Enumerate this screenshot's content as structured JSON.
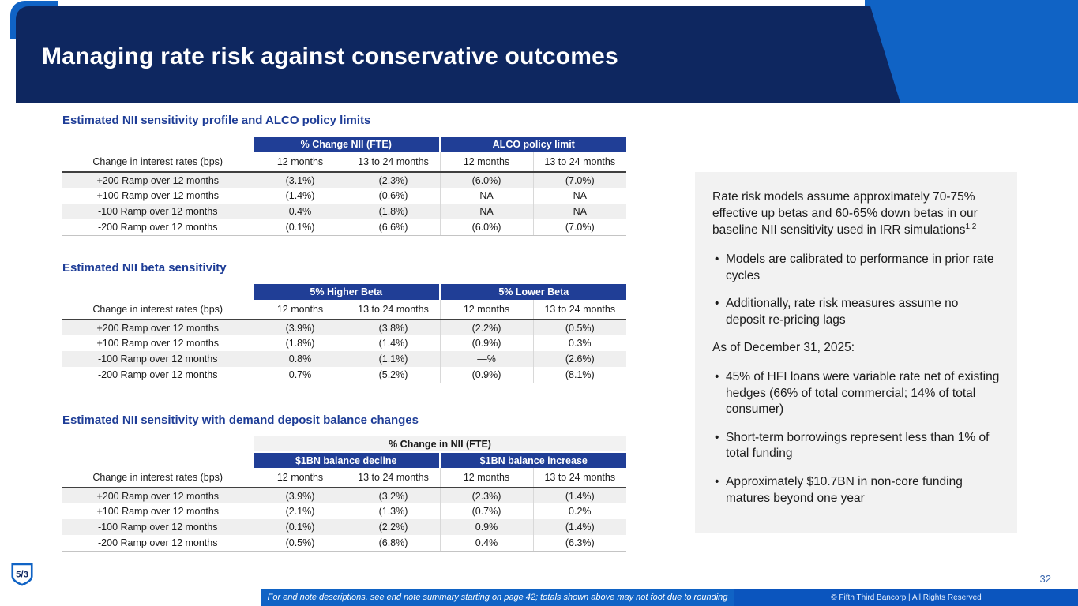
{
  "slide": {
    "title": "Managing rate risk against conservative outcomes",
    "page_number": "32",
    "footnote": "For end note descriptions, see end note summary starting on page 42; totals shown above may not foot due to rounding",
    "copyright": "© Fifth Third Bancorp | All Rights Reserved",
    "logo_text": "5/3"
  },
  "colors": {
    "brand_blue": "#1063C5",
    "header_navy": "#0E2760",
    "table_header_navy": "#203E96",
    "heading_blue": "#1E3D97",
    "row_shade": "#EFEFEF",
    "sidebar_bg": "#F2F2F2"
  },
  "sections": [
    {
      "heading": "Estimated NII sensitivity profile and ALCO policy limits",
      "table": {
        "group_headers": [
          "% Change NII (FTE)",
          "ALCO policy limit"
        ],
        "row_label_header": "Change in interest rates (bps)",
        "col_headers": [
          "12 months",
          "13 to 24 months",
          "12 months",
          "13 to 24 months"
        ],
        "rows": [
          {
            "label": "+200 Ramp over 12 months",
            "values": [
              "(3.1%)",
              "(2.3%)",
              "(6.0%)",
              "(7.0%)"
            ]
          },
          {
            "label": "+100 Ramp over 12 months",
            "values": [
              "(1.4%)",
              "(0.6%)",
              "NA",
              "NA"
            ]
          },
          {
            "label": "-100 Ramp over 12 months",
            "values": [
              "0.4%",
              "(1.8%)",
              "NA",
              "NA"
            ]
          },
          {
            "label": "-200 Ramp over 12 months",
            "values": [
              "(0.1%)",
              "(6.6%)",
              "(6.0%)",
              "(7.0%)"
            ]
          }
        ]
      }
    },
    {
      "heading": "Estimated NII beta sensitivity",
      "table": {
        "group_headers": [
          "5% Higher Beta",
          "5% Lower Beta"
        ],
        "row_label_header": "Change in interest rates (bps)",
        "col_headers": [
          "12 months",
          "13 to 24 months",
          "12 months",
          "13 to 24 months"
        ],
        "rows": [
          {
            "label": "+200 Ramp over 12 months",
            "values": [
              "(3.9%)",
              "(3.8%)",
              "(2.2%)",
              "(0.5%)"
            ]
          },
          {
            "label": "+100 Ramp over 12 months",
            "values": [
              "(1.8%)",
              "(1.4%)",
              "(0.9%)",
              "0.3%"
            ]
          },
          {
            "label": "-100 Ramp over 12 months",
            "values": [
              "0.8%",
              "(1.1%)",
              "—%",
              "(2.6%)"
            ]
          },
          {
            "label": "-200 Ramp over 12 months",
            "values": [
              "0.7%",
              "(5.2%)",
              "(0.9%)",
              "(8.1%)"
            ]
          }
        ]
      }
    },
    {
      "heading": "Estimated NII sensitivity with demand deposit balance changes",
      "table": {
        "span_header": "% Change in NII (FTE)",
        "group_headers": [
          "$1BN balance decline",
          "$1BN balance increase"
        ],
        "row_label_header": "Change in interest rates (bps)",
        "col_headers": [
          "12 months",
          "13 to 24 months",
          "12 months",
          "13 to 24 months"
        ],
        "rows": [
          {
            "label": "+200 Ramp over 12 months",
            "values": [
              "(3.9%)",
              "(3.2%)",
              "(2.3%)",
              "(1.4%)"
            ]
          },
          {
            "label": "+100 Ramp over 12 months",
            "values": [
              "(2.1%)",
              "(1.3%)",
              "(0.7%)",
              "0.2%"
            ]
          },
          {
            "label": "-100 Ramp over 12 months",
            "values": [
              "(0.1%)",
              "(2.2%)",
              "0.9%",
              "(1.4%)"
            ]
          },
          {
            "label": "-200 Ramp over 12 months",
            "values": [
              "(0.5%)",
              "(6.8%)",
              "0.4%",
              "(6.3%)"
            ]
          }
        ]
      }
    }
  ],
  "sidebar": {
    "p1": "Rate risk models assume approximately 70-75% effective up betas and 60-65% down betas in our baseline NII sensitivity used in IRR simulations",
    "p1_sup": "1,2",
    "bullets_a": [
      "Models are calibrated to performance in prior rate cycles",
      "Additionally, rate risk measures assume no deposit re-pricing lags"
    ],
    "p2": "As of December 31, 2025:",
    "bullets_b": [
      "45% of HFI loans were variable rate net of existing hedges (66% of total commercial; 14% of total consumer)",
      "Short-term borrowings represent less than 1% of total funding",
      "Approximately $10.7BN in non-core funding matures beyond one year"
    ]
  }
}
